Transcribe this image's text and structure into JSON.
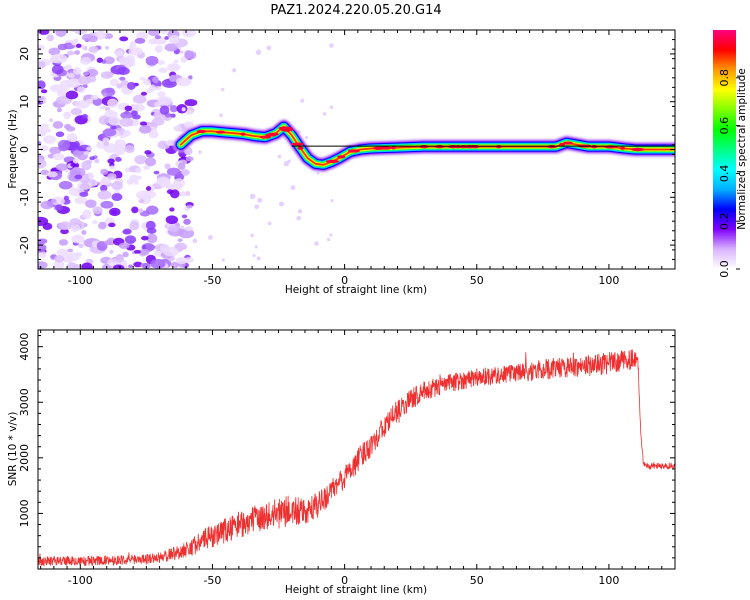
{
  "figure": {
    "title": "PAZ1.2024.220.05.20.G14"
  },
  "colorbar": {
    "label": "Normalized spectral amplitude",
    "ticks": [
      0.0,
      0.2,
      0.4,
      0.6,
      0.8
    ],
    "tick_labels": [
      "0.0",
      "0.2",
      "0.4",
      "0.6",
      "0.8"
    ],
    "range": [
      0.0,
      1.0
    ],
    "colors": [
      "#ffffff",
      "#d9b3ff",
      "#7f00ff",
      "#0000ff",
      "#00b0ff",
      "#00ffff",
      "#00ff80",
      "#00ff00",
      "#80ff00",
      "#ffff00",
      "#ff9900",
      "#ff0000",
      "#ff007f"
    ]
  },
  "chart_data": [
    {
      "type": "heatmap",
      "panel": "spectrogram",
      "xlabel": "Height of straight line (km)",
      "ylabel": "Frequency (Hz)",
      "xlim": [
        -116,
        125
      ],
      "ylim": [
        -25,
        25
      ],
      "xticks": [
        -100,
        -50,
        0,
        50,
        100
      ],
      "yticks": [
        -20,
        -10,
        0,
        10,
        20
      ],
      "noise_region_x": [
        -116,
        -62
      ],
      "ridge": {
        "x": [
          -62,
          -58,
          -54,
          -50,
          -46,
          -42,
          -38,
          -34,
          -30,
          -26,
          -23,
          -20,
          -17,
          -14,
          -11,
          -8,
          -5,
          -2,
          2,
          6,
          10,
          20,
          30,
          40,
          50,
          60,
          70,
          80,
          84,
          88,
          92,
          100,
          106,
          110,
          125
        ],
        "y": [
          1.0,
          3.0,
          3.8,
          3.8,
          3.6,
          3.4,
          3.2,
          2.8,
          2.6,
          3.4,
          4.8,
          3.0,
          0.5,
          -1.8,
          -3.0,
          -3.2,
          -2.6,
          -1.8,
          -0.5,
          0.0,
          0.2,
          0.4,
          0.6,
          0.6,
          0.6,
          0.6,
          0.6,
          0.6,
          1.4,
          1.0,
          0.6,
          0.6,
          0.2,
          0.0,
          0.0
        ]
      },
      "line_y": 0.7,
      "color": "#000000"
    },
    {
      "type": "line",
      "panel": "snr",
      "xlabel": "Height of straight line (km)",
      "ylabel": "SNR (10 * v/v)",
      "xlim": [
        -116,
        125
      ],
      "ylim": [
        0,
        4300
      ],
      "xticks": [
        -100,
        -50,
        0,
        50,
        100
      ],
      "yticks": [
        1000,
        2000,
        3000,
        4000
      ],
      "color": "#ee3030",
      "series": [
        {
          "x": [
            -116,
            -100,
            -80,
            -70,
            -60,
            -50,
            -40,
            -30,
            -20,
            -15,
            -10,
            -5,
            0,
            5,
            10,
            15,
            20,
            25,
            30,
            40,
            50,
            60,
            70,
            80,
            90,
            100,
            105,
            111,
            112,
            113,
            115,
            120,
            125
          ],
          "values": [
            150,
            140,
            170,
            200,
            350,
            600,
            800,
            950,
            1050,
            1000,
            1150,
            1400,
            1650,
            1950,
            2250,
            2550,
            2850,
            3050,
            3200,
            3350,
            3450,
            3500,
            3550,
            3620,
            3650,
            3700,
            3750,
            3780,
            2500,
            1900,
            1850,
            1850,
            1860
          ],
          "noise_amplitude": [
            90,
            90,
            90,
            100,
            150,
            220,
            250,
            250,
            300,
            250,
            230,
            220,
            220,
            220,
            220,
            200,
            200,
            190,
            180,
            170,
            170,
            170,
            180,
            190,
            190,
            200,
            190,
            180,
            60,
            60,
            60,
            60,
            60
          ]
        }
      ]
    }
  ]
}
